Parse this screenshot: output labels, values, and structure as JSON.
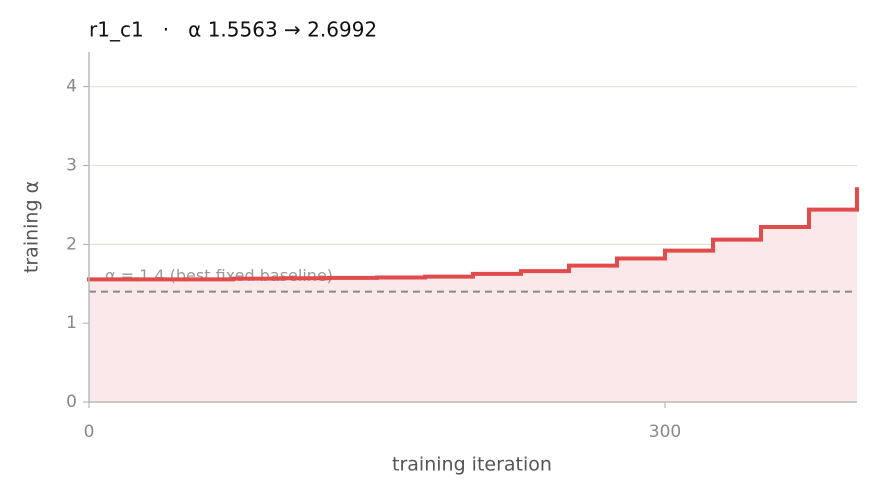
{
  "chart_data": {
    "type": "step",
    "title": "r1_c1   ·   α 1.5563 → 2.6992",
    "x_label": "training iteration",
    "y_label": "training α",
    "x": [
      0,
      25,
      50,
      75,
      100,
      125,
      150,
      175,
      200,
      225,
      250,
      275,
      300,
      325,
      350,
      375,
      400
    ],
    "values": [
      1.5563,
      1.5563,
      1.5563,
      1.565,
      1.57,
      1.575,
      1.58,
      1.59,
      1.625,
      1.66,
      1.73,
      1.82,
      1.92,
      2.06,
      2.22,
      2.44,
      2.6992
    ],
    "color": "#e04b4b",
    "fill_color": "#fbe9e9",
    "baseline": {
      "value": 1.4,
      "label": "α = 1.4 (best fixed baseline)",
      "color": "#888888"
    },
    "xlim": [
      0,
      400
    ],
    "ylim": [
      0,
      4.44
    ],
    "xticks": [
      0,
      300
    ],
    "yticks": [
      0,
      1,
      2,
      3,
      4
    ],
    "grid": true
  }
}
